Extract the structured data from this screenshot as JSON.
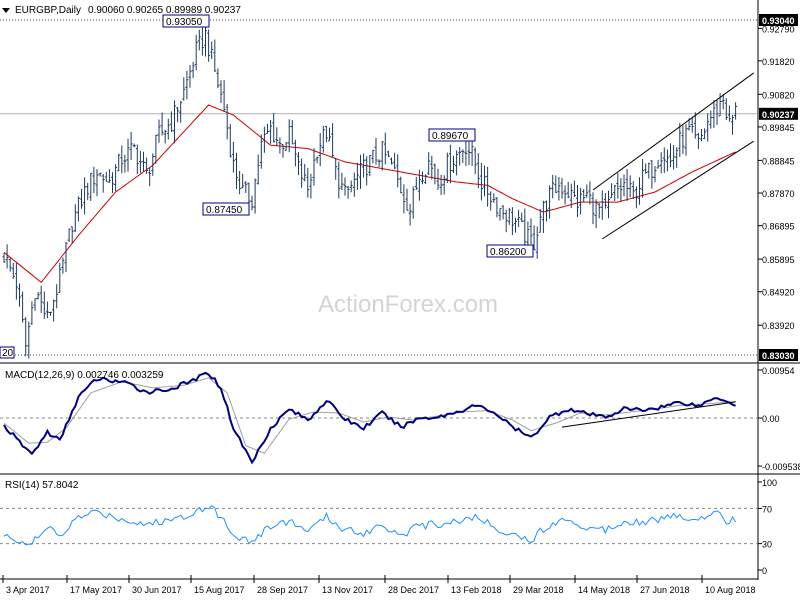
{
  "header": {
    "symbol": "EURGBP,Daily",
    "ohlc": "0.90060 0.90265 0.89989 0.90237"
  },
  "watermark": "ActionForex.com",
  "colors": {
    "candle": "#1f3a5f",
    "ma": "#cc0000",
    "macd": "#000080",
    "signal": "#a0a0a0",
    "rsi": "#1e90ff",
    "grid": "#c8c8c8",
    "label_border": "#000080",
    "price_box_bg": "#000000",
    "price_box_text": "#ffffff"
  },
  "chart_data": [
    {
      "type": "candlestick",
      "panel": "price",
      "symbol": "EURGBP",
      "timeframe": "Daily",
      "ylim": [
        0.8303,
        0.9304
      ],
      "y_ticks": [
        "0.92790",
        "0.91820",
        "0.90820",
        "0.89845",
        "0.88845",
        "0.87870",
        "0.86895",
        "0.85895",
        "0.84920",
        "0.83920"
      ],
      "last_price": "0.90237",
      "top_line": "0.93040",
      "bottom_line": "0.83030",
      "x_labels": [
        "3 Apr 2017",
        "17 May 2017",
        "30 Jun 2017",
        "15 Aug 2017",
        "28 Sep 2017",
        "13 Nov 2017",
        "28 Dec 2017",
        "13 Feb 2018",
        "29 Mar 2018",
        "14 May 2018",
        "27 Jun 2018",
        "10 Aug 2018"
      ],
      "annotations": [
        {
          "label": "0.93050",
          "i": 65
        },
        {
          "label": "0.87450",
          "i": 80
        },
        {
          "label": "0.89670",
          "i": 150
        },
        {
          "label": "0.86200",
          "i": 170
        }
      ],
      "left_edge_label": "20",
      "anchors": [
        [
          0,
          0.86
        ],
        [
          4,
          0.852
        ],
        [
          7,
          0.833
        ],
        [
          10,
          0.85
        ],
        [
          14,
          0.841
        ],
        [
          18,
          0.853
        ],
        [
          22,
          0.87
        ],
        [
          26,
          0.879
        ],
        [
          30,
          0.885
        ],
        [
          34,
          0.882
        ],
        [
          38,
          0.889
        ],
        [
          42,
          0.892
        ],
        [
          46,
          0.884
        ],
        [
          50,
          0.896
        ],
        [
          54,
          0.9
        ],
        [
          58,
          0.909
        ],
        [
          62,
          0.921
        ],
        [
          65,
          0.926
        ],
        [
          68,
          0.915
        ],
        [
          71,
          0.904
        ],
        [
          74,
          0.887
        ],
        [
          77,
          0.879
        ],
        [
          80,
          0.877
        ],
        [
          83,
          0.893
        ],
        [
          86,
          0.898
        ],
        [
          89,
          0.893
        ],
        [
          92,
          0.896
        ],
        [
          95,
          0.886
        ],
        [
          98,
          0.88
        ],
        [
          101,
          0.892
        ],
        [
          104,
          0.897
        ],
        [
          107,
          0.885
        ],
        [
          110,
          0.878
        ],
        [
          113,
          0.882
        ],
        [
          116,
          0.886
        ],
        [
          119,
          0.889
        ],
        [
          122,
          0.891
        ],
        [
          125,
          0.887
        ],
        [
          128,
          0.88
        ],
        [
          131,
          0.874
        ],
        [
          134,
          0.884
        ],
        [
          137,
          0.888
        ],
        [
          140,
          0.882
        ],
        [
          143,
          0.887
        ],
        [
          146,
          0.89
        ],
        [
          149,
          0.893
        ],
        [
          151,
          0.89
        ],
        [
          154,
          0.882
        ],
        [
          157,
          0.878
        ],
        [
          160,
          0.874
        ],
        [
          163,
          0.872
        ],
        [
          166,
          0.869
        ],
        [
          169,
          0.865
        ],
        [
          171,
          0.864
        ],
        [
          173,
          0.872
        ],
        [
          176,
          0.878
        ],
        [
          179,
          0.881
        ],
        [
          182,
          0.879
        ],
        [
          185,
          0.876
        ],
        [
          188,
          0.878
        ],
        [
          191,
          0.874
        ],
        [
          194,
          0.873
        ],
        [
          197,
          0.879
        ],
        [
          200,
          0.881
        ],
        [
          203,
          0.878
        ],
        [
          206,
          0.883
        ],
        [
          209,
          0.886
        ],
        [
          212,
          0.891
        ],
        [
          215,
          0.888
        ],
        [
          218,
          0.894
        ],
        [
          221,
          0.897
        ],
        [
          224,
          0.893
        ],
        [
          227,
          0.9
        ],
        [
          230,
          0.904
        ],
        [
          232,
          0.907
        ],
        [
          234,
          0.899
        ],
        [
          236,
          0.903
        ]
      ],
      "ma_anchors": [
        [
          0,
          0.861
        ],
        [
          12,
          0.852
        ],
        [
          24,
          0.866
        ],
        [
          36,
          0.879
        ],
        [
          48,
          0.887
        ],
        [
          58,
          0.897
        ],
        [
          66,
          0.905
        ],
        [
          74,
          0.902
        ],
        [
          86,
          0.893
        ],
        [
          98,
          0.892
        ],
        [
          110,
          0.888
        ],
        [
          122,
          0.886
        ],
        [
          134,
          0.884
        ],
        [
          146,
          0.882
        ],
        [
          156,
          0.881
        ],
        [
          164,
          0.877
        ],
        [
          174,
          0.873
        ],
        [
          186,
          0.876
        ],
        [
          198,
          0.876
        ],
        [
          210,
          0.879
        ],
        [
          222,
          0.885
        ],
        [
          236,
          0.891
        ]
      ],
      "channel_upper": [
        [
          190,
          0.8796
        ],
        [
          237,
          0.9122
        ]
      ],
      "channel_lower": [
        [
          193,
          0.865
        ],
        [
          237,
          0.8918
        ]
      ]
    },
    {
      "type": "line",
      "panel": "macd",
      "title": "MACD(12,26,9) 0.002746 0.003259",
      "ylim": [
        -0.00953,
        0.00954
      ],
      "y_ticks": [
        "0.00954",
        "0.00",
        "-0.009538"
      ],
      "series": [
        {
          "name": "MACD",
          "anchors": [
            [
              0,
              -0.0015
            ],
            [
              5,
              -0.0048
            ],
            [
              9,
              -0.0072
            ],
            [
              14,
              -0.0028
            ],
            [
              18,
              -0.0045
            ],
            [
              24,
              0.0042
            ],
            [
              30,
              0.0078
            ],
            [
              38,
              0.0072
            ],
            [
              46,
              0.0052
            ],
            [
              54,
              0.0058
            ],
            [
              60,
              0.0072
            ],
            [
              66,
              0.009
            ],
            [
              70,
              0.006
            ],
            [
              74,
              -0.002
            ],
            [
              80,
              -0.0088
            ],
            [
              86,
              -0.002
            ],
            [
              92,
              0.0018
            ],
            [
              98,
              -0.0004
            ],
            [
              104,
              0.0035
            ],
            [
              110,
              -0.0002
            ],
            [
              116,
              -0.002
            ],
            [
              122,
              0.001
            ],
            [
              128,
              -0.0018
            ],
            [
              134,
              0.0
            ],
            [
              140,
              0.0002
            ],
            [
              146,
              0.0012
            ],
            [
              152,
              0.0025
            ],
            [
              158,
              0.0012
            ],
            [
              164,
              -0.0018
            ],
            [
              170,
              -0.004
            ],
            [
              176,
              0.0002
            ],
            [
              182,
              0.0018
            ],
            [
              188,
              0.0008
            ],
            [
              194,
              0.0002
            ],
            [
              200,
              0.0018
            ],
            [
              206,
              0.0016
            ],
            [
              212,
              0.0022
            ],
            [
              218,
              0.0032
            ],
            [
              224,
              0.0024
            ],
            [
              230,
              0.0042
            ],
            [
              236,
              0.0027
            ]
          ]
        },
        {
          "name": "Signal",
          "anchors": [
            [
              0,
              -0.001
            ],
            [
              8,
              -0.005
            ],
            [
              14,
              -0.0048
            ],
            [
              20,
              -0.002
            ],
            [
              28,
              0.005
            ],
            [
              38,
              0.0072
            ],
            [
              48,
              0.006
            ],
            [
              58,
              0.0065
            ],
            [
              66,
              0.008
            ],
            [
              72,
              0.005
            ],
            [
              78,
              -0.0055
            ],
            [
              84,
              -0.007
            ],
            [
              92,
              -0.0002
            ],
            [
              100,
              0.0012
            ],
            [
              108,
              0.001
            ],
            [
              116,
              -0.0008
            ],
            [
              124,
              0.0002
            ],
            [
              132,
              -0.0004
            ],
            [
              140,
              0.0004
            ],
            [
              148,
              0.0012
            ],
            [
              156,
              0.0015
            ],
            [
              164,
              -0.0004
            ],
            [
              170,
              -0.0025
            ],
            [
              178,
              -0.001
            ],
            [
              186,
              0.001
            ],
            [
              194,
              0.0006
            ],
            [
              202,
              0.0012
            ],
            [
              210,
              0.0018
            ],
            [
              218,
              0.0025
            ],
            [
              226,
              0.0028
            ],
            [
              236,
              0.0033
            ]
          ]
        }
      ],
      "trendline": [
        [
          180,
          -0.0018
        ],
        [
          236,
          0.0032
        ]
      ]
    },
    {
      "type": "line",
      "panel": "rsi",
      "title": "RSI(14) 57.8042",
      "ylim": [
        0,
        100
      ],
      "y_ticks": [
        "100",
        "70",
        "30",
        "0"
      ],
      "levels": [
        70,
        30
      ],
      "series": [
        {
          "name": "RSI",
          "anchors": [
            [
              0,
              38
            ],
            [
              5,
              34
            ],
            [
              9,
              30
            ],
            [
              14,
              48
            ],
            [
              18,
              38
            ],
            [
              24,
              60
            ],
            [
              30,
              66
            ],
            [
              38,
              58
            ],
            [
              46,
              52
            ],
            [
              54,
              57
            ],
            [
              60,
              64
            ],
            [
              66,
              74
            ],
            [
              70,
              60
            ],
            [
              74,
              40
            ],
            [
              80,
              32
            ],
            [
              86,
              50
            ],
            [
              92,
              56
            ],
            [
              98,
              44
            ],
            [
              104,
              60
            ],
            [
              110,
              46
            ],
            [
              116,
              42
            ],
            [
              122,
              52
            ],
            [
              128,
              40
            ],
            [
              134,
              50
            ],
            [
              140,
              52
            ],
            [
              146,
              56
            ],
            [
              152,
              60
            ],
            [
              158,
              50
            ],
            [
              164,
              40
            ],
            [
              170,
              34
            ],
            [
              176,
              52
            ],
            [
              182,
              58
            ],
            [
              188,
              48
            ],
            [
              194,
              46
            ],
            [
              200,
              56
            ],
            [
              206,
              55
            ],
            [
              212,
              58
            ],
            [
              218,
              62
            ],
            [
              224,
              56
            ],
            [
              230,
              70
            ],
            [
              233,
              55
            ],
            [
              236,
              58
            ]
          ]
        }
      ]
    }
  ]
}
